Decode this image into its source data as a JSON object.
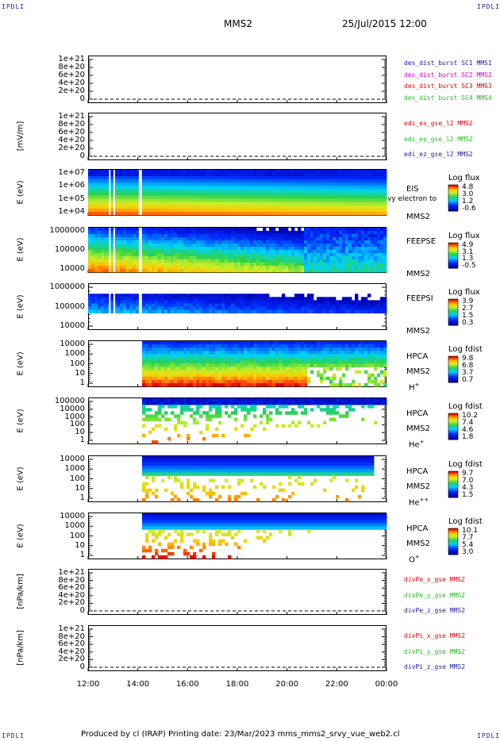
{
  "header": {
    "corner_label": "IPDLI",
    "spacecraft": "MMS2",
    "date": "25/Jul/2015 12:00"
  },
  "footer": {
    "text": "Produced by cl (IRAP)   Printing date: 23/Mar/2023   mms_mms2_srvy_vue_web2.cl"
  },
  "colors": {
    "c_black": "#1a1aa0",
    "c_mag": "#cc00cc",
    "c_red": "#dd0000",
    "c_green": "#22bb22",
    "c_blue": "#1a1aa0"
  },
  "time_axis": {
    "ticks": [
      "12:00",
      "14:00",
      "16:00",
      "18:00",
      "20:00",
      "22:00",
      "00:00"
    ]
  },
  "chart_data": [
    {
      "type": "line",
      "name": "des_dist",
      "ylabel": "",
      "yticks": [
        "1e+21",
        "8e+20",
        "6e+20",
        "4e+20",
        "2e+20",
        "0"
      ],
      "legend": [
        {
          "text": "des_dist_burst SC1 MMS1",
          "color": "#1a1aa0"
        },
        {
          "text": "des_dist_burst SC2 MMS2",
          "color": "#cc00cc"
        },
        {
          "text": "des_dist_burst SC3 MMS3",
          "color": "#dd0000"
        },
        {
          "text": "des_dist_burst SC4 MMS4",
          "color": "#22bb22"
        }
      ],
      "values": []
    },
    {
      "type": "line",
      "name": "edi_e",
      "ylabel": "[mV/m]",
      "yticks": [
        "1e+21",
        "8e+20",
        "6e+20",
        "4e+20",
        "2e+20",
        "0"
      ],
      "legend": [
        {
          "text": "edi_ex_gse_l2 MMS2",
          "color": "#dd0000"
        },
        {
          "text": "edi_ey_gse_l2 MMS2",
          "color": "#22bb22"
        },
        {
          "text": "edi_ez_gse_l2 MMS2",
          "color": "#1a1aa0"
        }
      ],
      "values": []
    },
    {
      "type": "heatmap",
      "name": "EIS",
      "ylabel": "E (eV)",
      "yticks": [
        "1e+07",
        "1e+06",
        "1e+05",
        "1e+04"
      ],
      "instrument": [
        "EIS",
        "MMS2"
      ],
      "overflow_text": "vy electron to",
      "colorbar": {
        "title": "Log flux",
        "ticks": [
          "4.8",
          "3.0",
          "1.2",
          "-0.6"
        ]
      }
    },
    {
      "type": "heatmap",
      "name": "FEEPSE",
      "ylabel": "E (eV)",
      "yticks": [
        "1000000",
        "100000",
        "10000"
      ],
      "instrument": [
        "FEEPSE",
        "MMS2"
      ],
      "colorbar": {
        "title": "Log flux",
        "ticks": [
          "4.9",
          "3.1",
          "1.3",
          "-0.5"
        ]
      }
    },
    {
      "type": "heatmap",
      "name": "FEEPSI",
      "ylabel": "E (eV)",
      "yticks": [
        "1000000",
        "100000",
        "10000"
      ],
      "instrument": [
        "FEEPSI",
        "MMS2"
      ],
      "colorbar": {
        "title": "Log flux",
        "ticks": [
          "3.9",
          "2.7",
          "1.5",
          "0.3"
        ]
      }
    },
    {
      "type": "heatmap",
      "name": "HPCA H+",
      "ylabel": "E (eV)",
      "yticks": [
        "10000",
        "1000",
        "100",
        "10",
        "1"
      ],
      "instrument": [
        "HPCA",
        "MMS2"
      ],
      "species": {
        "base": "H",
        "sup": "+"
      },
      "colorbar": {
        "title": "Log fdist",
        "ticks": [
          "9.8",
          "6.8",
          "3.7",
          "0.7"
        ]
      }
    },
    {
      "type": "heatmap",
      "name": "HPCA He+",
      "ylabel": "E (eV)",
      "yticks": [
        "100000",
        "10000",
        "1000",
        "100",
        "10",
        "1"
      ],
      "instrument": [
        "HPCA",
        "MMS2"
      ],
      "species": {
        "base": "He",
        "sup": "+"
      },
      "colorbar": {
        "title": "Log fdist",
        "ticks": [
          "10.2",
          "7.4",
          "4.6",
          "1.8"
        ]
      }
    },
    {
      "type": "heatmap",
      "name": "HPCA He++",
      "ylabel": "E (eV)",
      "yticks": [
        "10000",
        "1000",
        "100",
        "10",
        "1"
      ],
      "instrument": [
        "HPCA",
        "MMS2"
      ],
      "species": {
        "base": "He",
        "sup": "++"
      },
      "colorbar": {
        "title": "Log fdist",
        "ticks": [
          "9.7",
          "7.0",
          "4.3",
          "1.5"
        ]
      }
    },
    {
      "type": "heatmap",
      "name": "HPCA O+",
      "ylabel": "E (eV)",
      "yticks": [
        "10000",
        "1000",
        "100",
        "10",
        "1"
      ],
      "instrument": [
        "HPCA",
        "MMS2"
      ],
      "species": {
        "base": "O",
        "sup": "+"
      },
      "colorbar": {
        "title": "Log fdist",
        "ticks": [
          "10.1",
          "7.7",
          "5.4",
          "3.0"
        ]
      }
    },
    {
      "type": "line",
      "name": "divPe",
      "ylabel": "[nPa/km]",
      "yticks": [
        "1e+21",
        "8e+20",
        "6e+20",
        "4e+20",
        "2e+20",
        "0"
      ],
      "legend": [
        {
          "text": "divPe_x_gse MMS2",
          "color": "#dd0000"
        },
        {
          "text": "divPe_y_gse MMS2",
          "color": "#22bb22"
        },
        {
          "text": "divPe_z_gse MMS2",
          "color": "#1a1aa0"
        }
      ],
      "values": []
    },
    {
      "type": "line",
      "name": "divPi",
      "ylabel": "[nPa/km]",
      "yticks": [
        "1e+21",
        "8e+20",
        "6e+20",
        "4e+20",
        "2e+20",
        "0"
      ],
      "legend": [
        {
          "text": "divPi_x_gse MMS2",
          "color": "#dd0000"
        },
        {
          "text": "divPi_y_gse MMS2",
          "color": "#22bb22"
        },
        {
          "text": "divPi_z_gse MMS2",
          "color": "#1a1aa0"
        }
      ],
      "values": []
    }
  ]
}
